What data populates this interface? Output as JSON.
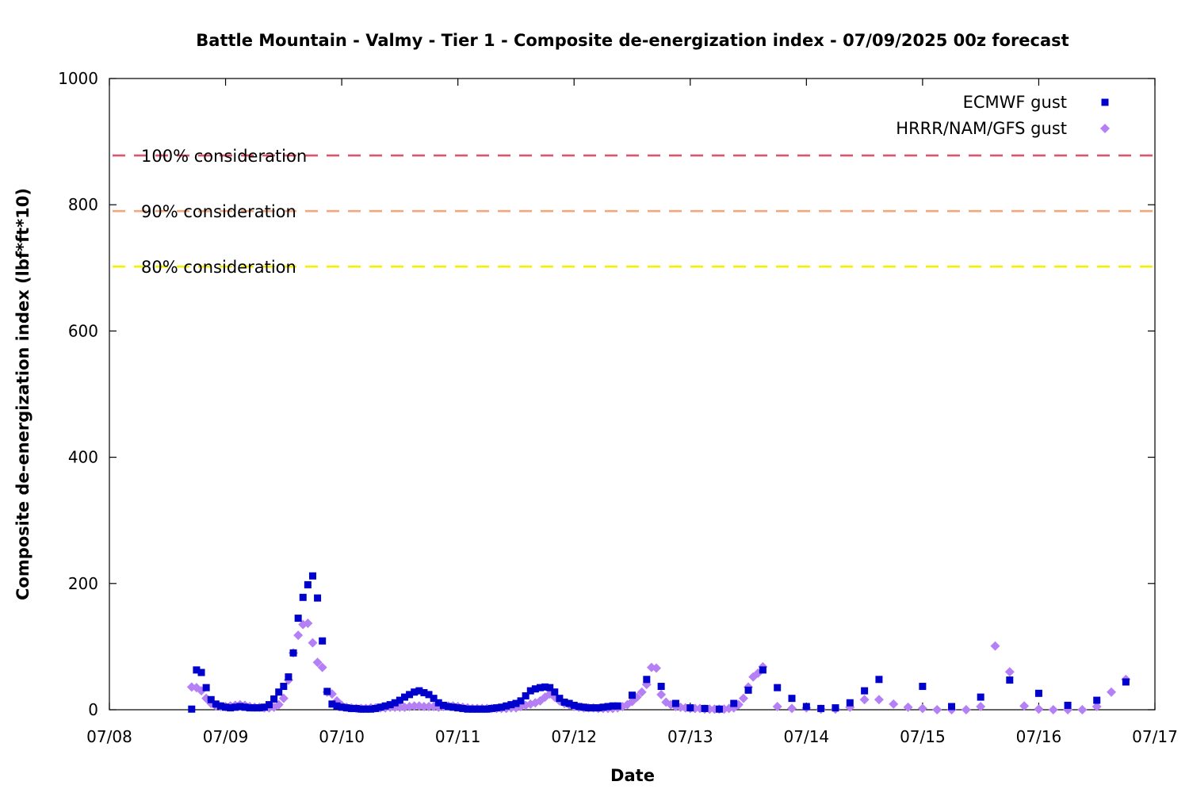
{
  "chart_data": {
    "type": "scatter",
    "title": "Battle Mountain - Valmy - Tier 1 - Composite de-energization index - 07/09/2025 00z forecast",
    "xlabel": "Date",
    "ylabel": "Composite de-energization index (lbf*ft*10)",
    "x_ticks": [
      "07/08",
      "07/09",
      "07/10",
      "07/11",
      "07/12",
      "07/13",
      "07/14",
      "07/15",
      "07/16",
      "07/17"
    ],
    "xlim": [
      "07/08",
      "07/17"
    ],
    "ylim": [
      0,
      1000
    ],
    "y_ticks": [
      0,
      200,
      400,
      600,
      800,
      1000
    ],
    "grid": false,
    "legend_position": "top-right",
    "thresholds": [
      {
        "label": "100% consideration",
        "value": 878,
        "color": "#d9566e"
      },
      {
        "label": "90% consideration",
        "value": 790,
        "color": "#f4a77d"
      },
      {
        "label": "80% consideration",
        "value": 702,
        "color": "#f5f000"
      }
    ],
    "series": [
      {
        "name": "ECMWF gust",
        "marker": "square",
        "color": "#0000cc",
        "points": [
          [
            "07/08 17:00",
            1
          ],
          [
            "07/08 18:00",
            63
          ],
          [
            "07/08 19:00",
            59
          ],
          [
            "07/08 20:00",
            35
          ],
          [
            "07/08 21:00",
            16
          ],
          [
            "07/08 22:00",
            9
          ],
          [
            "07/08 23:00",
            6
          ],
          [
            "07/09 00:00",
            4
          ],
          [
            "07/09 01:00",
            3
          ],
          [
            "07/09 02:00",
            4
          ],
          [
            "07/09 03:00",
            5
          ],
          [
            "07/09 04:00",
            4
          ],
          [
            "07/09 05:00",
            3
          ],
          [
            "07/09 06:00",
            3
          ],
          [
            "07/09 07:00",
            3
          ],
          [
            "07/09 08:00",
            4
          ],
          [
            "07/09 09:00",
            8
          ],
          [
            "07/09 10:00",
            17
          ],
          [
            "07/09 11:00",
            28
          ],
          [
            "07/09 12:00",
            37
          ],
          [
            "07/09 13:00",
            52
          ],
          [
            "07/09 14:00",
            90
          ],
          [
            "07/09 15:00",
            145
          ],
          [
            "07/09 16:00",
            178
          ],
          [
            "07/09 17:00",
            198
          ],
          [
            "07/09 18:00",
            212
          ],
          [
            "07/09 19:00",
            177
          ],
          [
            "07/09 20:00",
            109
          ],
          [
            "07/09 21:00",
            29
          ],
          [
            "07/09 22:00",
            9
          ],
          [
            "07/09 23:00",
            6
          ],
          [
            "07/10 00:00",
            4
          ],
          [
            "07/10 01:00",
            3
          ],
          [
            "07/10 02:00",
            2
          ],
          [
            "07/10 03:00",
            2
          ],
          [
            "07/10 04:00",
            1
          ],
          [
            "07/10 05:00",
            1
          ],
          [
            "07/10 06:00",
            1
          ],
          [
            "07/10 07:00",
            2
          ],
          [
            "07/10 08:00",
            4
          ],
          [
            "07/10 09:00",
            6
          ],
          [
            "07/10 10:00",
            8
          ],
          [
            "07/10 11:00",
            11
          ],
          [
            "07/10 12:00",
            15
          ],
          [
            "07/10 13:00",
            20
          ],
          [
            "07/10 14:00",
            24
          ],
          [
            "07/10 15:00",
            28
          ],
          [
            "07/10 16:00",
            30
          ],
          [
            "07/10 17:00",
            27
          ],
          [
            "07/10 18:00",
            24
          ],
          [
            "07/10 19:00",
            18
          ],
          [
            "07/10 20:00",
            11
          ],
          [
            "07/10 21:00",
            7
          ],
          [
            "07/10 22:00",
            5
          ],
          [
            "07/10 23:00",
            4
          ],
          [
            "07/11 00:00",
            3
          ],
          [
            "07/11 01:00",
            2
          ],
          [
            "07/11 02:00",
            1
          ],
          [
            "07/11 03:00",
            1
          ],
          [
            "07/11 04:00",
            1
          ],
          [
            "07/11 05:00",
            1
          ],
          [
            "07/11 06:00",
            1
          ],
          [
            "07/11 07:00",
            2
          ],
          [
            "07/11 08:00",
            3
          ],
          [
            "07/11 09:00",
            4
          ],
          [
            "07/11 10:00",
            6
          ],
          [
            "07/11 11:00",
            8
          ],
          [
            "07/11 12:00",
            10
          ],
          [
            "07/11 13:00",
            14
          ],
          [
            "07/11 14:00",
            22
          ],
          [
            "07/11 15:00",
            30
          ],
          [
            "07/11 16:00",
            33
          ],
          [
            "07/11 17:00",
            35
          ],
          [
            "07/11 18:00",
            36
          ],
          [
            "07/11 19:00",
            35
          ],
          [
            "07/11 20:00",
            28
          ],
          [
            "07/11 21:00",
            18
          ],
          [
            "07/11 22:00",
            12
          ],
          [
            "07/11 23:00",
            10
          ],
          [
            "07/12 00:00",
            7
          ],
          [
            "07/12 01:00",
            5
          ],
          [
            "07/12 02:00",
            4
          ],
          [
            "07/12 03:00",
            3
          ],
          [
            "07/12 04:00",
            3
          ],
          [
            "07/12 05:00",
            3
          ],
          [
            "07/12 06:00",
            4
          ],
          [
            "07/12 07:00",
            5
          ],
          [
            "07/12 08:00",
            6
          ],
          [
            "07/12 09:00",
            6
          ],
          [
            "07/12 12:00",
            23
          ],
          [
            "07/12 15:00",
            48
          ],
          [
            "07/12 18:00",
            37
          ],
          [
            "07/12 21:00",
            10
          ],
          [
            "07/13 00:00",
            3
          ],
          [
            "07/13 03:00",
            2
          ],
          [
            "07/13 06:00",
            1
          ],
          [
            "07/13 09:00",
            10
          ],
          [
            "07/13 12:00",
            31
          ],
          [
            "07/13 15:00",
            63
          ],
          [
            "07/13 18:00",
            35
          ],
          [
            "07/13 21:00",
            18
          ],
          [
            "07/14 00:00",
            5
          ],
          [
            "07/14 03:00",
            2
          ],
          [
            "07/14 06:00",
            3
          ],
          [
            "07/14 09:00",
            11
          ],
          [
            "07/14 12:00",
            30
          ],
          [
            "07/14 15:00",
            48
          ],
          [
            "07/15 00:00",
            37
          ],
          [
            "07/15 06:00",
            5
          ],
          [
            "07/15 12:00",
            20
          ],
          [
            "07/15 18:00",
            47
          ],
          [
            "07/16 00:00",
            26
          ],
          [
            "07/16 06:00",
            7
          ],
          [
            "07/16 12:00",
            15
          ],
          [
            "07/16 18:00",
            44
          ]
        ]
      },
      {
        "name": "HRRR/NAM/GFS gust",
        "marker": "diamond",
        "color": "#b580f5",
        "points": [
          [
            "07/08 17:00",
            36
          ],
          [
            "07/08 18:00",
            35
          ],
          [
            "07/08 19:00",
            30
          ],
          [
            "07/08 20:00",
            18
          ],
          [
            "07/08 21:00",
            10
          ],
          [
            "07/08 22:00",
            6
          ],
          [
            "07/08 23:00",
            5
          ],
          [
            "07/09 00:00",
            5
          ],
          [
            "07/09 01:00",
            6
          ],
          [
            "07/09 02:00",
            7
          ],
          [
            "07/09 03:00",
            8
          ],
          [
            "07/09 04:00",
            7
          ],
          [
            "07/09 05:00",
            5
          ],
          [
            "07/09 06:00",
            4
          ],
          [
            "07/09 07:00",
            4
          ],
          [
            "07/09 08:00",
            3
          ],
          [
            "07/09 09:00",
            3
          ],
          [
            "07/09 10:00",
            4
          ],
          [
            "07/09 11:00",
            8
          ],
          [
            "07/09 12:00",
            18
          ],
          [
            "07/09 13:00",
            47
          ],
          [
            "07/09 14:00",
            90
          ],
          [
            "07/09 15:00",
            118
          ],
          [
            "07/09 16:00",
            135
          ],
          [
            "07/09 17:00",
            137
          ],
          [
            "07/09 18:00",
            106
          ],
          [
            "07/09 19:00",
            75
          ],
          [
            "07/09 20:00",
            67
          ],
          [
            "07/09 21:00",
            28
          ],
          [
            "07/09 22:00",
            25
          ],
          [
            "07/09 23:00",
            14
          ],
          [
            "07/10 00:00",
            7
          ],
          [
            "07/10 01:00",
            4
          ],
          [
            "07/10 02:00",
            3
          ],
          [
            "07/10 03:00",
            2
          ],
          [
            "07/10 04:00",
            2
          ],
          [
            "07/10 05:00",
            2
          ],
          [
            "07/10 06:00",
            3
          ],
          [
            "07/10 07:00",
            3
          ],
          [
            "07/10 08:00",
            3
          ],
          [
            "07/10 09:00",
            3
          ],
          [
            "07/10 10:00",
            4
          ],
          [
            "07/10 11:00",
            4
          ],
          [
            "07/10 12:00",
            4
          ],
          [
            "07/10 13:00",
            4
          ],
          [
            "07/10 14:00",
            5
          ],
          [
            "07/10 15:00",
            6
          ],
          [
            "07/10 16:00",
            6
          ],
          [
            "07/10 17:00",
            5
          ],
          [
            "07/10 18:00",
            5
          ],
          [
            "07/10 19:00",
            5
          ],
          [
            "07/10 20:00",
            4
          ],
          [
            "07/10 21:00",
            5
          ],
          [
            "07/10 22:00",
            6
          ],
          [
            "07/10 23:00",
            6
          ],
          [
            "07/11 00:00",
            5
          ],
          [
            "07/11 01:00",
            4
          ],
          [
            "07/11 02:00",
            3
          ],
          [
            "07/11 03:00",
            2
          ],
          [
            "07/11 04:00",
            2
          ],
          [
            "07/11 05:00",
            2
          ],
          [
            "07/11 06:00",
            2
          ],
          [
            "07/11 07:00",
            2
          ],
          [
            "07/11 08:00",
            2
          ],
          [
            "07/11 09:00",
            2
          ],
          [
            "07/11 10:00",
            2
          ],
          [
            "07/11 11:00",
            3
          ],
          [
            "07/11 12:00",
            3
          ],
          [
            "07/11 13:00",
            5
          ],
          [
            "07/11 14:00",
            7
          ],
          [
            "07/11 15:00",
            9
          ],
          [
            "07/11 16:00",
            11
          ],
          [
            "07/11 17:00",
            14
          ],
          [
            "07/11 18:00",
            20
          ],
          [
            "07/11 19:00",
            25
          ],
          [
            "07/11 20:00",
            20
          ],
          [
            "07/11 21:00",
            14
          ],
          [
            "07/11 22:00",
            10
          ],
          [
            "07/11 23:00",
            8
          ],
          [
            "07/12 00:00",
            5
          ],
          [
            "07/12 01:00",
            4
          ],
          [
            "07/12 02:00",
            3
          ],
          [
            "07/12 03:00",
            3
          ],
          [
            "07/12 04:00",
            3
          ],
          [
            "07/12 05:00",
            2
          ],
          [
            "07/12 06:00",
            2
          ],
          [
            "07/12 07:00",
            2
          ],
          [
            "07/12 08:00",
            2
          ],
          [
            "07/12 09:00",
            3
          ],
          [
            "07/12 10:00",
            5
          ],
          [
            "07/12 11:00",
            8
          ],
          [
            "07/12 12:00",
            13
          ],
          [
            "07/12 13:00",
            20
          ],
          [
            "07/12 14:00",
            28
          ],
          [
            "07/12 15:00",
            40
          ],
          [
            "07/12 16:00",
            67
          ],
          [
            "07/12 17:00",
            66
          ],
          [
            "07/12 18:00",
            24
          ],
          [
            "07/12 19:00",
            12
          ],
          [
            "07/12 20:00",
            8
          ],
          [
            "07/12 21:00",
            5
          ],
          [
            "07/12 22:00",
            4
          ],
          [
            "07/12 23:00",
            3
          ],
          [
            "07/13 00:00",
            2
          ],
          [
            "07/13 01:00",
            2
          ],
          [
            "07/13 02:00",
            2
          ],
          [
            "07/13 03:00",
            1
          ],
          [
            "07/13 04:00",
            1
          ],
          [
            "07/13 05:00",
            1
          ],
          [
            "07/13 06:00",
            1
          ],
          [
            "07/13 07:00",
            1
          ],
          [
            "07/13 08:00",
            2
          ],
          [
            "07/13 09:00",
            3
          ],
          [
            "07/13 10:00",
            8
          ],
          [
            "07/13 11:00",
            18
          ],
          [
            "07/13 12:00",
            36
          ],
          [
            "07/13 13:00",
            52
          ],
          [
            "07/13 14:00",
            58
          ],
          [
            "07/13 15:00",
            68
          ],
          [
            "07/13 18:00",
            5
          ],
          [
            "07/13 21:00",
            2
          ],
          [
            "07/14 00:00",
            3
          ],
          [
            "07/14 03:00",
            1
          ],
          [
            "07/14 06:00",
            1
          ],
          [
            "07/14 09:00",
            4
          ],
          [
            "07/14 12:00",
            16
          ],
          [
            "07/14 15:00",
            16
          ],
          [
            "07/14 18:00",
            9
          ],
          [
            "07/14 21:00",
            4
          ],
          [
            "07/15 00:00",
            2
          ],
          [
            "07/15 03:00",
            0
          ],
          [
            "07/15 06:00",
            0
          ],
          [
            "07/15 09:00",
            0
          ],
          [
            "07/15 12:00",
            5
          ],
          [
            "07/15 15:00",
            101
          ],
          [
            "07/15 18:00",
            60
          ],
          [
            "07/15 21:00",
            6
          ],
          [
            "07/16 00:00",
            1
          ],
          [
            "07/16 03:00",
            0
          ],
          [
            "07/16 06:00",
            0
          ],
          [
            "07/16 09:00",
            0
          ],
          [
            "07/16 12:00",
            5
          ],
          [
            "07/16 15:00",
            28
          ],
          [
            "07/16 18:00",
            48
          ]
        ]
      }
    ]
  }
}
